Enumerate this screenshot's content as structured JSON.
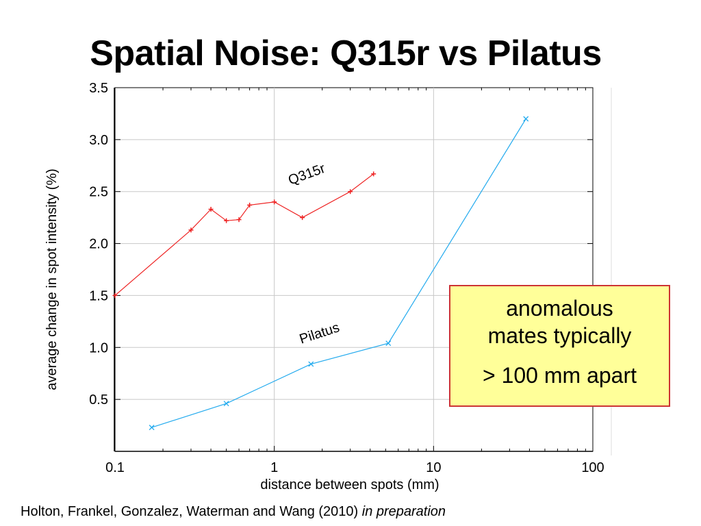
{
  "slide": {
    "title": "Spatial Noise: Q315r vs Pilatus",
    "callout": {
      "line1": "anomalous",
      "line2": "mates typically",
      "line3": "> 100 mm apart"
    },
    "citation": {
      "text": "Holton, Frankel, Gonzalez, Waterman and Wang (2010) ",
      "emphasis": "in preparation"
    }
  },
  "chart_data": {
    "type": "line",
    "xlabel": "distance between spots (mm)",
    "ylabel": "average change in spot intensity (%)",
    "xscale": "log",
    "xlim": [
      0.1,
      100
    ],
    "ylim": [
      0,
      3.5
    ],
    "x_ticks": [
      0.1,
      1,
      10,
      100
    ],
    "x_tick_labels": [
      "0.1",
      "1",
      "10",
      "100"
    ],
    "y_ticks": [
      0.5,
      1.0,
      1.5,
      2.0,
      2.5,
      3.0,
      3.5
    ],
    "y_tick_labels": [
      "0.5",
      "1.0",
      "1.5",
      "2.0",
      "2.5",
      "3.0",
      "3.5"
    ],
    "grid": true,
    "series": [
      {
        "name": "Q315r",
        "color": "#ee2222",
        "marker": "plus",
        "x": [
          0.1,
          0.3,
          0.4,
          0.5,
          0.6,
          0.7,
          1.0,
          1.5,
          3.0,
          4.2
        ],
        "y": [
          1.5,
          2.13,
          2.33,
          2.22,
          2.23,
          2.37,
          2.4,
          2.25,
          2.5,
          2.67
        ]
      },
      {
        "name": "Pilatus",
        "color": "#22aaee",
        "marker": "cross",
        "x": [
          0.17,
          0.5,
          1.7,
          5.2,
          38
        ],
        "y": [
          0.23,
          0.46,
          0.84,
          1.04,
          3.2
        ]
      }
    ]
  }
}
